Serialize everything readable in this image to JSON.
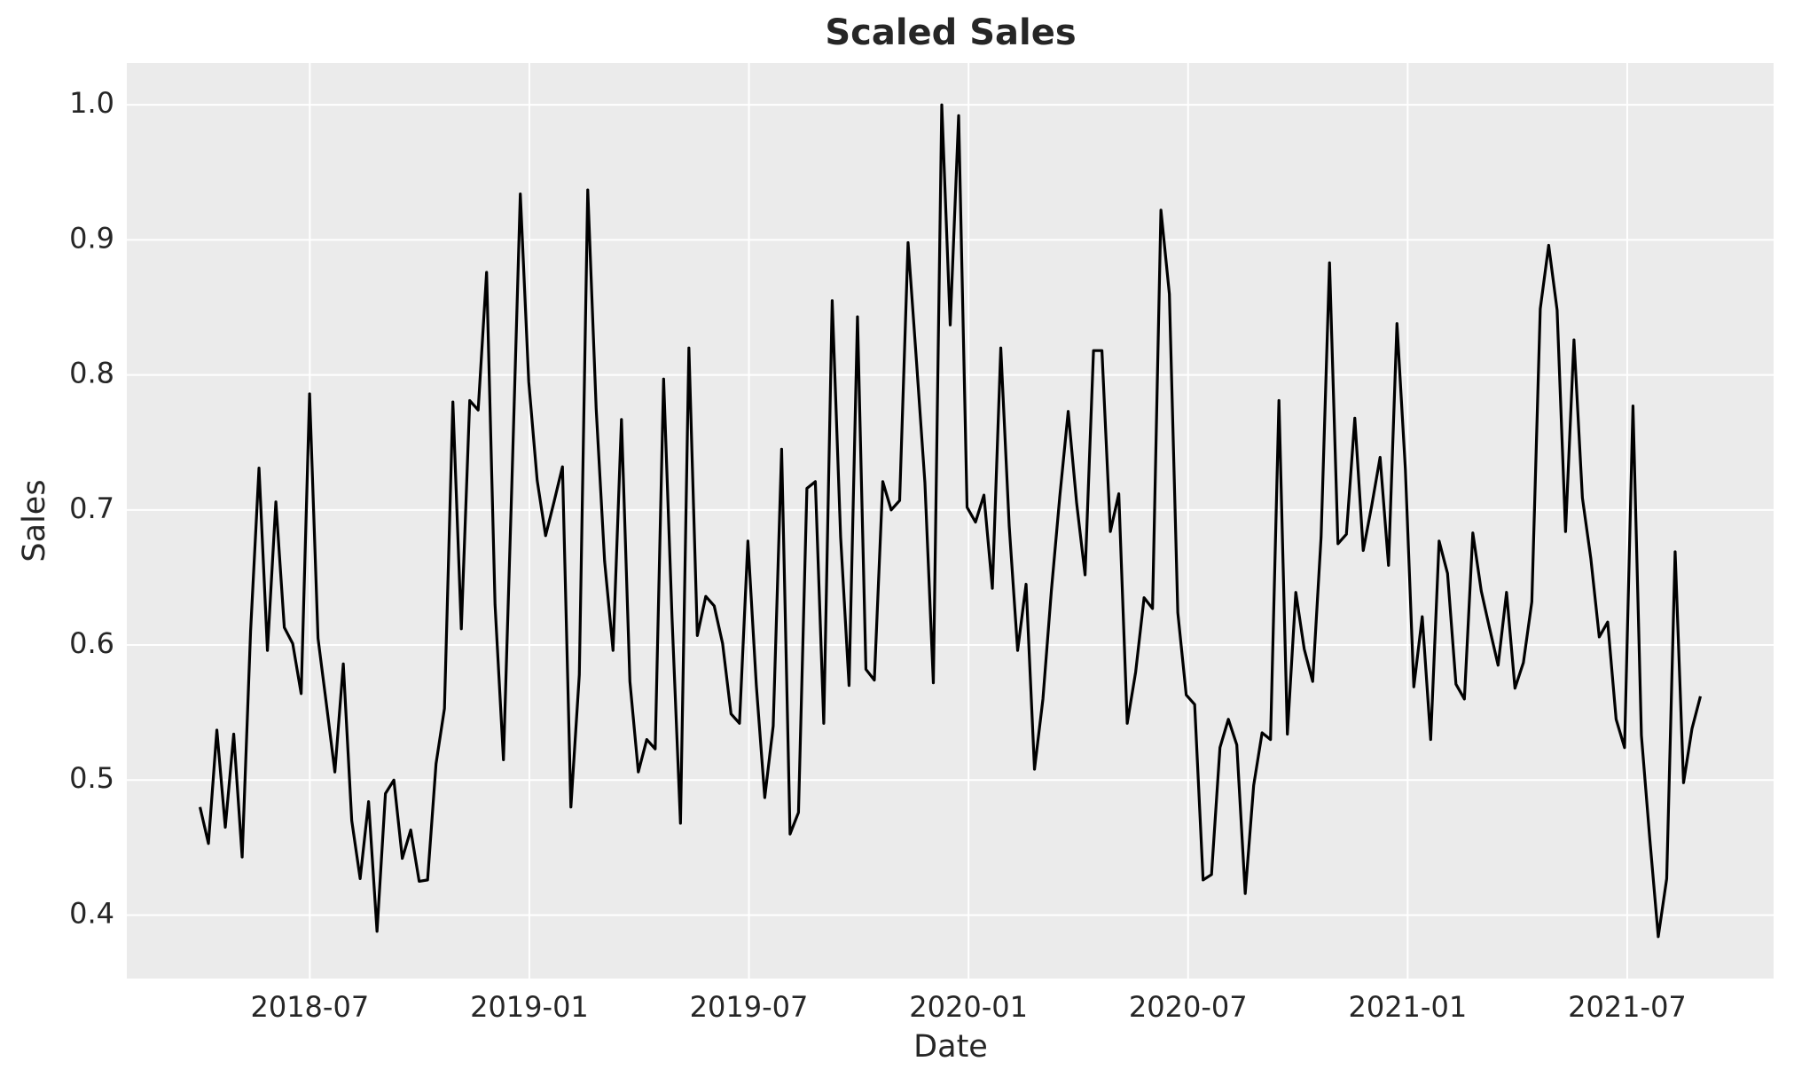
{
  "chart_data": {
    "type": "line",
    "title": "Scaled Sales",
    "x_label": "Date",
    "y_label": "Sales",
    "x": [
      "2018-04",
      "2018-04",
      "2018-04",
      "2018-04",
      "2018-04",
      "2018-05",
      "2018-05",
      "2018-05",
      "2018-05",
      "2018-06",
      "2018-06",
      "2018-06",
      "2018-06",
      "2018-07",
      "2018-07",
      "2018-07",
      "2018-07",
      "2018-07",
      "2018-08",
      "2018-08",
      "2018-08",
      "2018-08",
      "2018-09",
      "2018-09",
      "2018-09",
      "2018-09",
      "2018-10",
      "2018-10",
      "2018-10",
      "2018-10",
      "2018-10",
      "2018-11",
      "2018-11",
      "2018-11",
      "2018-11",
      "2018-12",
      "2018-12",
      "2018-12",
      "2018-12",
      "2018-12",
      "2019-01",
      "2019-01",
      "2019-01",
      "2019-01",
      "2019-02",
      "2019-02",
      "2019-02",
      "2019-02",
      "2019-03",
      "2019-03",
      "2019-03",
      "2019-03",
      "2019-04",
      "2019-04",
      "2019-04",
      "2019-04",
      "2019-04",
      "2019-05",
      "2019-05",
      "2019-05",
      "2019-05",
      "2019-06",
      "2019-06",
      "2019-06",
      "2019-06",
      "2019-07",
      "2019-07",
      "2019-07",
      "2019-07",
      "2019-07",
      "2019-08",
      "2019-08",
      "2019-08",
      "2019-08",
      "2019-09",
      "2019-09",
      "2019-09",
      "2019-09",
      "2019-09",
      "2019-10",
      "2019-10",
      "2019-10",
      "2019-10",
      "2019-11",
      "2019-11",
      "2019-11",
      "2019-11",
      "2019-12",
      "2019-12",
      "2019-12",
      "2019-12",
      "2019-12",
      "2020-01",
      "2020-01",
      "2020-01",
      "2020-01",
      "2020-02",
      "2020-02",
      "2020-02",
      "2020-02",
      "2020-03",
      "2020-03",
      "2020-03",
      "2020-03",
      "2020-03",
      "2020-04",
      "2020-04",
      "2020-04",
      "2020-04",
      "2020-05",
      "2020-05",
      "2020-05",
      "2020-05",
      "2020-06",
      "2020-06",
      "2020-06",
      "2020-06",
      "2020-06",
      "2020-07",
      "2020-07",
      "2020-07",
      "2020-07",
      "2020-08",
      "2020-08",
      "2020-08",
      "2020-08",
      "2020-08",
      "2020-09",
      "2020-09",
      "2020-09",
      "2020-09",
      "2020-10",
      "2020-10",
      "2020-10",
      "2020-10",
      "2020-11",
      "2020-11",
      "2020-11",
      "2020-11",
      "2020-11",
      "2020-12",
      "2020-12",
      "2020-12",
      "2020-12",
      "2021-01",
      "2021-01",
      "2021-01",
      "2021-01",
      "2021-02",
      "2021-02",
      "2021-02",
      "2021-02",
      "2021-03",
      "2021-03",
      "2021-03",
      "2021-03",
      "2021-03",
      "2021-04",
      "2021-04",
      "2021-04",
      "2021-04",
      "2021-05",
      "2021-05",
      "2021-05",
      "2021-05",
      "2021-05",
      "2021-06",
      "2021-06",
      "2021-06",
      "2021-06",
      "2021-07",
      "2021-07",
      "2021-07",
      "2021-07",
      "2021-08",
      "2021-08",
      "2021-08",
      "2021-08",
      "2021-08"
    ],
    "values": [
      0.48,
      0.453,
      0.537,
      0.465,
      0.534,
      0.443,
      0.61,
      0.731,
      0.596,
      0.706,
      0.613,
      0.601,
      0.564,
      0.786,
      0.605,
      0.556,
      0.506,
      0.586,
      0.47,
      0.427,
      0.484,
      0.388,
      0.49,
      0.5,
      0.442,
      0.463,
      0.425,
      0.426,
      0.512,
      0.553,
      0.78,
      0.612,
      0.781,
      0.774,
      0.876,
      0.63,
      0.515,
      0.72,
      0.934,
      0.795,
      0.722,
      0.681,
      0.706,
      0.732,
      0.48,
      0.578,
      0.937,
      0.775,
      0.662,
      0.596,
      0.767,
      0.573,
      0.506,
      0.53,
      0.523,
      0.797,
      0.62,
      0.468,
      0.82,
      0.607,
      0.636,
      0.629,
      0.601,
      0.549,
      0.542,
      0.677,
      0.57,
      0.487,
      0.54,
      0.745,
      0.46,
      0.476,
      0.716,
      0.721,
      0.542,
      0.855,
      0.68,
      0.57,
      0.843,
      0.582,
      0.574,
      0.721,
      0.7,
      0.707,
      0.898,
      0.81,
      0.72,
      0.572,
      1.0,
      0.837,
      0.992,
      0.702,
      0.691,
      0.711,
      0.642,
      0.82,
      0.688,
      0.596,
      0.645,
      0.508,
      0.56,
      0.64,
      0.71,
      0.773,
      0.705,
      0.652,
      0.818,
      0.818,
      0.684,
      0.712,
      0.542,
      0.58,
      0.635,
      0.627,
      0.922,
      0.86,
      0.624,
      0.563,
      0.556,
      0.426,
      0.43,
      0.524,
      0.545,
      0.526,
      0.416,
      0.496,
      0.535,
      0.53,
      0.781,
      0.534,
      0.639,
      0.597,
      0.573,
      0.68,
      0.883,
      0.675,
      0.682,
      0.768,
      0.67,
      0.703,
      0.739,
      0.659,
      0.838,
      0.73,
      0.569,
      0.621,
      0.53,
      0.677,
      0.653,
      0.571,
      0.56,
      0.683,
      0.64,
      0.612,
      0.585,
      0.639,
      0.568,
      0.587,
      0.632,
      0.849,
      0.896,
      0.848,
      0.684,
      0.826,
      0.709,
      0.664,
      0.606,
      0.617,
      0.545,
      0.524,
      0.777,
      0.533,
      0.456,
      0.384,
      0.427,
      0.669,
      0.498,
      0.538,
      0.562
    ],
    "color": "#000000",
    "xlim": [
      "2018-02",
      "2021-11"
    ],
    "xticks": [
      "2018-07",
      "2019-01",
      "2019-07",
      "2020-01",
      "2020-07",
      "2021-01",
      "2021-07"
    ],
    "ylim": [
      0.353,
      1.031
    ],
    "yticks": [
      0.4,
      0.5,
      0.6,
      0.7,
      0.8,
      0.9,
      {
        "value": 1,
        "label": "1.0"
      }
    ],
    "grid": true
  }
}
